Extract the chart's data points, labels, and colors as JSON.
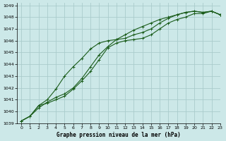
{
  "xlabel": "Graphe pression niveau de la mer (hPa)",
  "bg_color": "#cce8e8",
  "grid_color": "#aacccc",
  "line_color": "#1a5c1a",
  "xlim": [
    -0.5,
    23
  ],
  "ylim": [
    1039,
    1049.2
  ],
  "xticks": [
    0,
    1,
    2,
    3,
    4,
    5,
    6,
    7,
    8,
    9,
    10,
    11,
    12,
    13,
    14,
    15,
    16,
    17,
    18,
    19,
    20,
    21,
    22,
    23
  ],
  "yticks": [
    1039,
    1040,
    1041,
    1042,
    1043,
    1044,
    1045,
    1046,
    1047,
    1048,
    1049
  ],
  "line1_x": [
    0,
    1,
    2,
    3,
    4,
    5,
    6,
    7,
    8,
    9,
    10,
    11,
    12,
    13,
    14,
    15,
    16,
    17,
    18,
    19,
    20,
    21,
    22,
    23
  ],
  "line1_y": [
    1039.2,
    1039.6,
    1040.5,
    1040.7,
    1041.0,
    1041.3,
    1041.9,
    1042.6,
    1043.4,
    1044.4,
    1045.4,
    1045.8,
    1046.0,
    1046.1,
    1046.2,
    1046.5,
    1047.0,
    1047.5,
    1047.8,
    1048.0,
    1048.3,
    1048.3,
    1048.5,
    1048.2
  ],
  "line2_x": [
    0,
    1,
    2,
    3,
    4,
    5,
    6,
    7,
    8,
    9,
    10,
    11,
    12,
    13,
    14,
    15,
    16,
    17,
    18,
    19,
    20,
    21,
    22,
    23
  ],
  "line2_y": [
    1039.2,
    1039.6,
    1040.5,
    1041.0,
    1041.9,
    1043.0,
    1043.8,
    1044.5,
    1045.3,
    1045.8,
    1046.0,
    1046.1,
    1046.2,
    1046.5,
    1046.7,
    1047.0,
    1047.5,
    1047.9,
    1048.2,
    1048.4,
    1048.5,
    1048.4,
    1048.5,
    1048.2
  ],
  "line3_x": [
    0,
    1,
    2,
    3,
    4,
    5,
    6,
    7,
    8,
    9,
    10,
    11,
    12,
    13,
    14,
    15,
    16,
    17,
    18,
    19,
    20,
    21,
    22,
    23
  ],
  "line3_y": [
    1039.2,
    1039.6,
    1040.3,
    1040.8,
    1041.2,
    1041.5,
    1042.0,
    1042.8,
    1043.8,
    1044.8,
    1045.5,
    1046.1,
    1046.5,
    1046.9,
    1047.2,
    1047.5,
    1047.8,
    1048.0,
    1048.2,
    1048.4,
    1048.5,
    1048.4,
    1048.5,
    1048.2
  ]
}
